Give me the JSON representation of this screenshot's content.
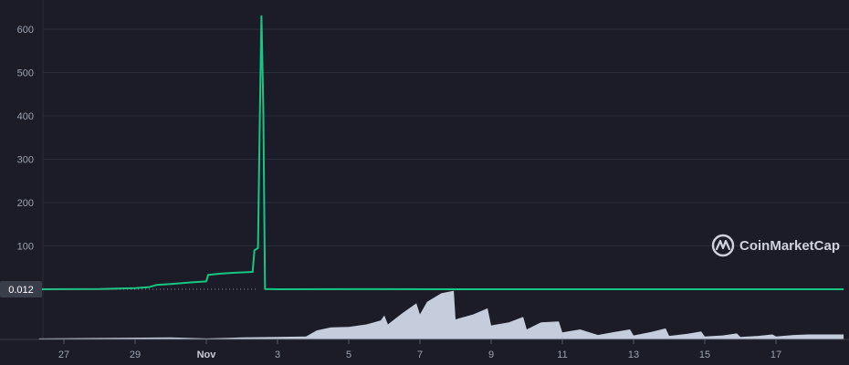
{
  "brand": {
    "name": "CoinMarketCap",
    "icon": "coinmarketcap-logo-icon"
  },
  "colors": {
    "background": "#1b1c27",
    "grid": "#2b2d3a",
    "price_line": "#16c784",
    "volume_fill": "#cfd6e6",
    "badge_bg": "#3a3d4a",
    "axis_text": "#9da3b3"
  },
  "current_price_label": "0.012",
  "chart_data": {
    "type": "line",
    "title": "",
    "xlabel": "",
    "ylabel": "",
    "grid": true,
    "ylim": [
      0,
      640
    ],
    "yticks": [
      100,
      200,
      300,
      400,
      500,
      600
    ],
    "xlim": [
      26.3,
      48.9
    ],
    "xticks": [
      {
        "x": 27,
        "label": "27",
        "strong": false
      },
      {
        "x": 29,
        "label": "29",
        "strong": false
      },
      {
        "x": 31,
        "label": "Nov",
        "strong": true
      },
      {
        "x": 33,
        "label": "3",
        "strong": false
      },
      {
        "x": 35,
        "label": "5",
        "strong": false
      },
      {
        "x": 37,
        "label": "7",
        "strong": false
      },
      {
        "x": 39,
        "label": "9",
        "strong": false
      },
      {
        "x": 41,
        "label": "11",
        "strong": false
      },
      {
        "x": 43,
        "label": "13",
        "strong": false
      },
      {
        "x": 45,
        "label": "15",
        "strong": false
      },
      {
        "x": 47,
        "label": "17",
        "strong": false
      }
    ],
    "series": [
      {
        "values": [
          [
            26.3,
            0.012
          ],
          [
            28.0,
            0.5
          ],
          [
            28.5,
            1.5
          ],
          [
            29.0,
            2.5
          ],
          [
            29.4,
            5
          ],
          [
            29.6,
            10
          ],
          [
            30.0,
            12
          ],
          [
            30.6,
            16
          ],
          [
            31.0,
            18
          ],
          [
            31.05,
            33
          ],
          [
            31.4,
            36
          ],
          [
            31.8,
            38
          ],
          [
            32.3,
            40
          ],
          [
            32.35,
            90
          ],
          [
            32.45,
            95
          ],
          [
            32.5,
            380
          ],
          [
            32.55,
            630
          ],
          [
            32.6,
            420
          ],
          [
            32.65,
            0.5
          ],
          [
            33.0,
            0.012
          ],
          [
            36.0,
            0.2
          ],
          [
            38.0,
            0.1
          ],
          [
            48.9,
            0.012
          ]
        ]
      }
    ],
    "volume": {
      "ylim": [
        0,
        1
      ],
      "values": [
        [
          26.3,
          0.02
        ],
        [
          28.0,
          0.03
        ],
        [
          30.0,
          0.04
        ],
        [
          31.0,
          0.02
        ],
        [
          32.0,
          0.04
        ],
        [
          33.0,
          0.05
        ],
        [
          33.8,
          0.06
        ],
        [
          34.1,
          0.18
        ],
        [
          34.5,
          0.24
        ],
        [
          35.0,
          0.25
        ],
        [
          35.5,
          0.3
        ],
        [
          35.9,
          0.38
        ],
        [
          36.0,
          0.48
        ],
        [
          36.1,
          0.3
        ],
        [
          36.5,
          0.52
        ],
        [
          36.9,
          0.72
        ],
        [
          37.0,
          0.5
        ],
        [
          37.2,
          0.75
        ],
        [
          37.6,
          0.92
        ],
        [
          37.95,
          0.97
        ],
        [
          38.0,
          0.4
        ],
        [
          38.5,
          0.5
        ],
        [
          38.9,
          0.62
        ],
        [
          39.0,
          0.28
        ],
        [
          39.5,
          0.34
        ],
        [
          39.9,
          0.45
        ],
        [
          40.0,
          0.2
        ],
        [
          40.4,
          0.34
        ],
        [
          40.9,
          0.36
        ],
        [
          41.0,
          0.14
        ],
        [
          41.5,
          0.2
        ],
        [
          42.0,
          0.09
        ],
        [
          42.4,
          0.14
        ],
        [
          42.9,
          0.2
        ],
        [
          43.0,
          0.08
        ],
        [
          43.5,
          0.15
        ],
        [
          43.9,
          0.22
        ],
        [
          44.0,
          0.07
        ],
        [
          44.5,
          0.11
        ],
        [
          44.9,
          0.16
        ],
        [
          45.0,
          0.06
        ],
        [
          45.5,
          0.08
        ],
        [
          45.9,
          0.12
        ],
        [
          46.0,
          0.05
        ],
        [
          46.5,
          0.07
        ],
        [
          46.9,
          0.1
        ],
        [
          47.0,
          0.06
        ],
        [
          47.5,
          0.09
        ],
        [
          47.9,
          0.1
        ],
        [
          48.9,
          0.1
        ]
      ]
    }
  }
}
